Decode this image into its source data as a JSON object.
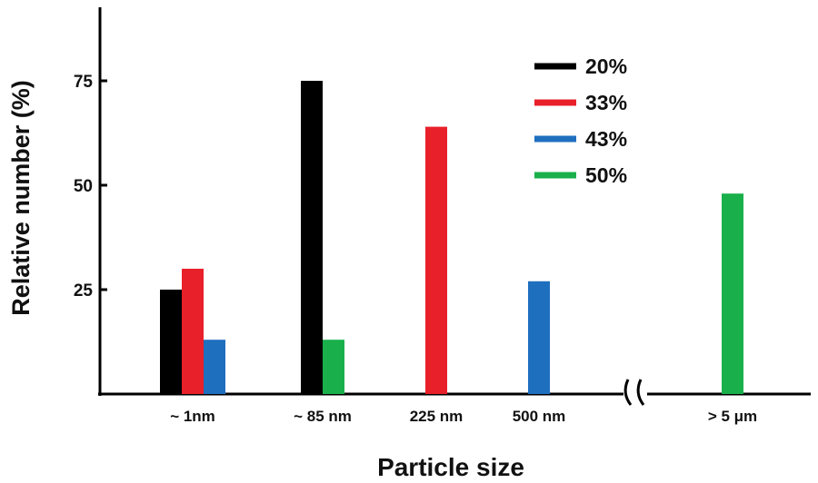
{
  "chart_data": {
    "type": "bar",
    "xlabel": "Particle size",
    "ylabel": "Relative number (%)",
    "categories": [
      "~ 1nm",
      "~ 85 nm",
      "225 nm",
      "500 nm",
      "> 5 μm"
    ],
    "y_ticks": [
      "25",
      "50",
      "75"
    ],
    "ylim": [
      0,
      100
    ],
    "grid": false,
    "legend_position": "top-right",
    "axis_break_between": [
      "500 nm",
      "> 5 μm"
    ],
    "series": [
      {
        "name": "20%",
        "color": "#000000",
        "values": [
          25,
          75,
          null,
          null,
          null
        ]
      },
      {
        "name": "33%",
        "color": "#e8202a",
        "values": [
          30,
          null,
          64,
          null,
          null
        ]
      },
      {
        "name": "43%",
        "color": "#1f6fbf",
        "values": [
          13,
          null,
          null,
          27,
          null
        ]
      },
      {
        "name": "50%",
        "color": "#19b04b",
        "values": [
          null,
          13,
          null,
          null,
          48
        ]
      }
    ]
  }
}
